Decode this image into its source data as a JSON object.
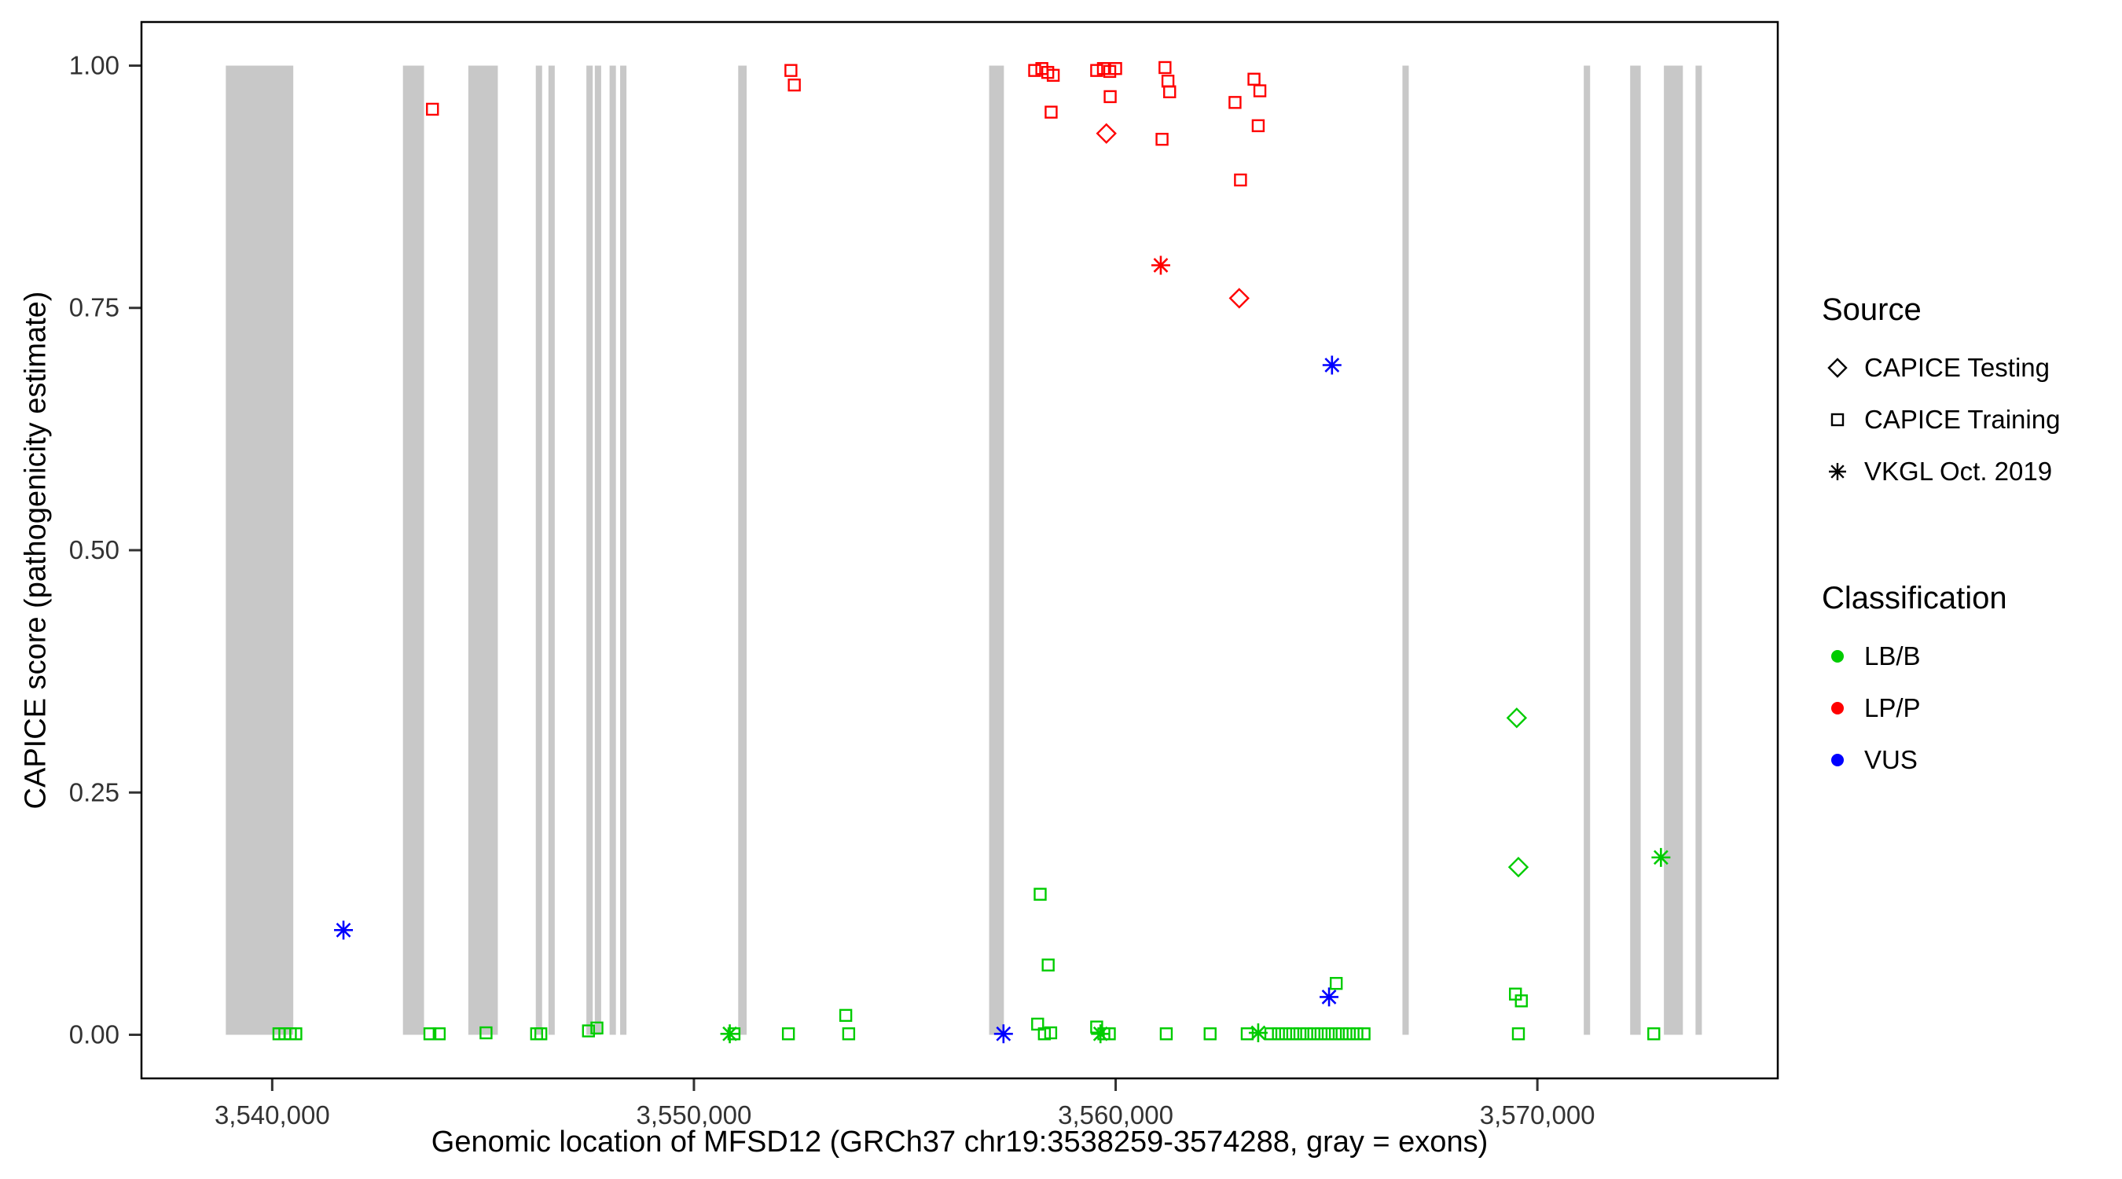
{
  "legend": {
    "source": {
      "title": "Source",
      "items": [
        {
          "label": "CAPICE Testing",
          "shape": "diamond"
        },
        {
          "label": "CAPICE Training",
          "shape": "square"
        },
        {
          "label": "VKGL Oct. 2019",
          "shape": "asterisk"
        }
      ]
    },
    "classification": {
      "title": "Classification",
      "items": [
        {
          "label": "LB/B",
          "color": "#00CC00"
        },
        {
          "label": "LP/P",
          "color": "#FF0000"
        },
        {
          "label": "VUS",
          "color": "#0000FF"
        }
      ]
    }
  },
  "chart_data": {
    "type": "scatter",
    "title": "",
    "xlabel": "Genomic location of MFSD12 (GRCh37 chr19:3538259-3574288, gray = exons)",
    "ylabel": "CAPICE score (pathogenicity estimate)",
    "xlim": [
      3536900,
      3575700
    ],
    "ylim": [
      -0.045,
      1.045
    ],
    "x_ticks": [
      {
        "value": 3540000,
        "label": "3,540,000"
      },
      {
        "value": 3550000,
        "label": "3,550,000"
      },
      {
        "value": 3560000,
        "label": "3,560,000"
      },
      {
        "value": 3570000,
        "label": "3,570,000"
      }
    ],
    "y_ticks": [
      {
        "value": 0.0,
        "label": "0.00"
      },
      {
        "value": 0.25,
        "label": "0.25"
      },
      {
        "value": 0.5,
        "label": "0.50"
      },
      {
        "value": 0.75,
        "label": "0.75"
      },
      {
        "value": 1.0,
        "label": "1.00"
      }
    ],
    "colors": {
      "LB/B": "#00CC00",
      "LP/P": "#FF0000",
      "VUS": "#0000FF",
      "exon": "#C8C8C8",
      "axis_text": "#333333"
    },
    "source_shapes": {
      "training": "square",
      "testing": "diamond",
      "vkgl": "asterisk"
    },
    "exons": [
      [
        3538900,
        3540500
      ],
      [
        3543100,
        3543600
      ],
      [
        3544650,
        3545350
      ],
      [
        3546250,
        3546400
      ],
      [
        3546550,
        3546700
      ],
      [
        3547450,
        3547600
      ],
      [
        3547650,
        3547800
      ],
      [
        3548000,
        3548150
      ],
      [
        3548250,
        3548400
      ],
      [
        3551050,
        3551250
      ],
      [
        3557000,
        3557350
      ],
      [
        3566800,
        3566950
      ],
      [
        3571100,
        3571250
      ],
      [
        3572200,
        3572450
      ],
      [
        3573000,
        3573450
      ],
      [
        3573750,
        3573900
      ]
    ],
    "points": [
      {
        "x": 3543800,
        "y": 0.955,
        "src": "training",
        "cls": "LP/P"
      },
      {
        "x": 3552300,
        "y": 0.995,
        "src": "training",
        "cls": "LP/P"
      },
      {
        "x": 3552380,
        "y": 0.98,
        "src": "training",
        "cls": "LP/P"
      },
      {
        "x": 3558080,
        "y": 0.995,
        "src": "training",
        "cls": "LP/P"
      },
      {
        "x": 3558250,
        "y": 0.997,
        "src": "training",
        "cls": "LP/P"
      },
      {
        "x": 3558390,
        "y": 0.993,
        "src": "training",
        "cls": "LP/P"
      },
      {
        "x": 3558520,
        "y": 0.99,
        "src": "training",
        "cls": "LP/P"
      },
      {
        "x": 3558470,
        "y": 0.952,
        "src": "training",
        "cls": "LP/P"
      },
      {
        "x": 3559550,
        "y": 0.995,
        "src": "training",
        "cls": "LP/P"
      },
      {
        "x": 3559710,
        "y": 0.997,
        "src": "training",
        "cls": "LP/P"
      },
      {
        "x": 3559860,
        "y": 0.994,
        "src": "training",
        "cls": "LP/P"
      },
      {
        "x": 3560000,
        "y": 0.997,
        "src": "training",
        "cls": "LP/P"
      },
      {
        "x": 3559870,
        "y": 0.968,
        "src": "training",
        "cls": "LP/P"
      },
      {
        "x": 3559780,
        "y": 0.93,
        "src": "testing",
        "cls": "LP/P"
      },
      {
        "x": 3561170,
        "y": 0.998,
        "src": "training",
        "cls": "LP/P"
      },
      {
        "x": 3561240,
        "y": 0.984,
        "src": "training",
        "cls": "LP/P"
      },
      {
        "x": 3561280,
        "y": 0.973,
        "src": "training",
        "cls": "LP/P"
      },
      {
        "x": 3561100,
        "y": 0.924,
        "src": "training",
        "cls": "LP/P"
      },
      {
        "x": 3561070,
        "y": 0.794,
        "src": "vkgl",
        "cls": "LP/P"
      },
      {
        "x": 3562830,
        "y": 0.962,
        "src": "training",
        "cls": "LP/P"
      },
      {
        "x": 3562960,
        "y": 0.882,
        "src": "training",
        "cls": "LP/P"
      },
      {
        "x": 3562930,
        "y": 0.76,
        "src": "testing",
        "cls": "LP/P"
      },
      {
        "x": 3563280,
        "y": 0.986,
        "src": "training",
        "cls": "LP/P"
      },
      {
        "x": 3563420,
        "y": 0.974,
        "src": "training",
        "cls": "LP/P"
      },
      {
        "x": 3563380,
        "y": 0.938,
        "src": "training",
        "cls": "LP/P"
      },
      {
        "x": 3541690,
        "y": 0.108,
        "src": "vkgl",
        "cls": "VUS"
      },
      {
        "x": 3557340,
        "y": 0.001,
        "src": "vkgl",
        "cls": "VUS"
      },
      {
        "x": 3565130,
        "y": 0.691,
        "src": "vkgl",
        "cls": "VUS"
      },
      {
        "x": 3565060,
        "y": 0.039,
        "src": "vkgl",
        "cls": "VUS"
      },
      {
        "x": 3540160,
        "y": 0.001,
        "src": "training",
        "cls": "LB/B"
      },
      {
        "x": 3540300,
        "y": 0.001,
        "src": "training",
        "cls": "LB/B"
      },
      {
        "x": 3540430,
        "y": 0.001,
        "src": "training",
        "cls": "LB/B"
      },
      {
        "x": 3540560,
        "y": 0.001,
        "src": "training",
        "cls": "LB/B"
      },
      {
        "x": 3543740,
        "y": 0.001,
        "src": "training",
        "cls": "LB/B"
      },
      {
        "x": 3543960,
        "y": 0.001,
        "src": "training",
        "cls": "LB/B"
      },
      {
        "x": 3545070,
        "y": 0.002,
        "src": "training",
        "cls": "LB/B"
      },
      {
        "x": 3546270,
        "y": 0.001,
        "src": "training",
        "cls": "LB/B"
      },
      {
        "x": 3546370,
        "y": 0.001,
        "src": "training",
        "cls": "LB/B"
      },
      {
        "x": 3547500,
        "y": 0.004,
        "src": "training",
        "cls": "LB/B"
      },
      {
        "x": 3547700,
        "y": 0.007,
        "src": "training",
        "cls": "LB/B"
      },
      {
        "x": 3550850,
        "y": 0.001,
        "src": "vkgl",
        "cls": "LB/B"
      },
      {
        "x": 3550950,
        "y": 0.001,
        "src": "training",
        "cls": "LB/B"
      },
      {
        "x": 3552240,
        "y": 0.001,
        "src": "training",
        "cls": "LB/B"
      },
      {
        "x": 3553600,
        "y": 0.02,
        "src": "training",
        "cls": "LB/B"
      },
      {
        "x": 3553670,
        "y": 0.001,
        "src": "training",
        "cls": "LB/B"
      },
      {
        "x": 3558210,
        "y": 0.145,
        "src": "training",
        "cls": "LB/B"
      },
      {
        "x": 3558400,
        "y": 0.072,
        "src": "training",
        "cls": "LB/B"
      },
      {
        "x": 3558150,
        "y": 0.011,
        "src": "training",
        "cls": "LB/B"
      },
      {
        "x": 3558310,
        "y": 0.001,
        "src": "training",
        "cls": "LB/B"
      },
      {
        "x": 3558460,
        "y": 0.002,
        "src": "training",
        "cls": "LB/B"
      },
      {
        "x": 3559550,
        "y": 0.008,
        "src": "training",
        "cls": "LB/B"
      },
      {
        "x": 3559640,
        "y": 0.001,
        "src": "vkgl",
        "cls": "LB/B"
      },
      {
        "x": 3559720,
        "y": 0.001,
        "src": "training",
        "cls": "LB/B"
      },
      {
        "x": 3559850,
        "y": 0.001,
        "src": "training",
        "cls": "LB/B"
      },
      {
        "x": 3561200,
        "y": 0.001,
        "src": "training",
        "cls": "LB/B"
      },
      {
        "x": 3562240,
        "y": 0.001,
        "src": "training",
        "cls": "LB/B"
      },
      {
        "x": 3563120,
        "y": 0.001,
        "src": "training",
        "cls": "LB/B"
      },
      {
        "x": 3563380,
        "y": 0.002,
        "src": "vkgl",
        "cls": "LB/B"
      },
      {
        "x": 3563680,
        "y": 0.001,
        "src": "training",
        "cls": "LB/B"
      },
      {
        "x": 3563860,
        "y": 0.001,
        "src": "training",
        "cls": "LB/B"
      },
      {
        "x": 3564030,
        "y": 0.001,
        "src": "training",
        "cls": "LB/B"
      },
      {
        "x": 3564200,
        "y": 0.001,
        "src": "training",
        "cls": "LB/B"
      },
      {
        "x": 3564370,
        "y": 0.001,
        "src": "training",
        "cls": "LB/B"
      },
      {
        "x": 3564530,
        "y": 0.001,
        "src": "training",
        "cls": "LB/B"
      },
      {
        "x": 3564700,
        "y": 0.001,
        "src": "training",
        "cls": "LB/B"
      },
      {
        "x": 3564870,
        "y": 0.001,
        "src": "training",
        "cls": "LB/B"
      },
      {
        "x": 3565040,
        "y": 0.001,
        "src": "training",
        "cls": "LB/B"
      },
      {
        "x": 3565210,
        "y": 0.001,
        "src": "training",
        "cls": "LB/B"
      },
      {
        "x": 3565370,
        "y": 0.001,
        "src": "training",
        "cls": "LB/B"
      },
      {
        "x": 3565540,
        "y": 0.001,
        "src": "training",
        "cls": "LB/B"
      },
      {
        "x": 3565720,
        "y": 0.001,
        "src": "training",
        "cls": "LB/B"
      },
      {
        "x": 3565890,
        "y": 0.001,
        "src": "training",
        "cls": "LB/B"
      },
      {
        "x": 3565230,
        "y": 0.053,
        "src": "training",
        "cls": "LB/B"
      },
      {
        "x": 3569510,
        "y": 0.327,
        "src": "testing",
        "cls": "LB/B"
      },
      {
        "x": 3569550,
        "y": 0.173,
        "src": "testing",
        "cls": "LB/B"
      },
      {
        "x": 3569480,
        "y": 0.042,
        "src": "training",
        "cls": "LB/B"
      },
      {
        "x": 3569620,
        "y": 0.035,
        "src": "training",
        "cls": "LB/B"
      },
      {
        "x": 3569550,
        "y": 0.001,
        "src": "training",
        "cls": "LB/B"
      },
      {
        "x": 3572760,
        "y": 0.001,
        "src": "training",
        "cls": "LB/B"
      },
      {
        "x": 3572930,
        "y": 0.183,
        "src": "vkgl",
        "cls": "LB/B"
      }
    ]
  }
}
